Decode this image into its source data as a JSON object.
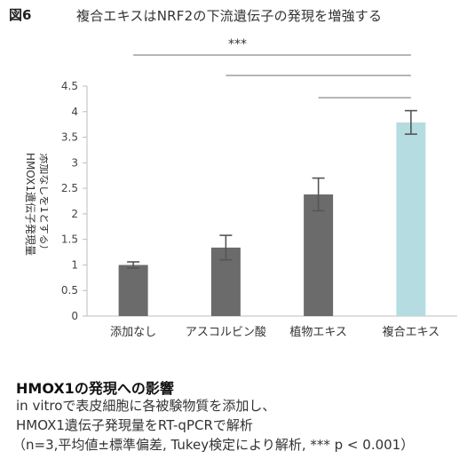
{
  "figure": {
    "label": "図6",
    "title": "複合エキスはNRF2の下流遺伝子の発現を増強する"
  },
  "chart_data": {
    "type": "bar",
    "categories": [
      "添加なし",
      "アスコルビン酸",
      "植物エキス",
      "複合エキス"
    ],
    "values": [
      1.0,
      1.34,
      2.38,
      3.79
    ],
    "errors": [
      0.06,
      0.24,
      0.32,
      0.23
    ],
    "bar_colors": [
      "#6b6b6b",
      "#6b6b6b",
      "#6b6b6b",
      "#b5dde1"
    ],
    "ylabel_line1": "HMOX1遺伝子発現量",
    "ylabel_line2": "添加なしを1とする）",
    "ylim": [
      0,
      4.5
    ],
    "yticks": [
      "0",
      "0.5",
      "1",
      "1.5",
      "2",
      "2.5",
      "3",
      "3.5",
      "4",
      "4.5"
    ],
    "significance": {
      "label": "***",
      "comparisons": [
        [
          "添加なし",
          "複合エキス"
        ],
        [
          "アスコルビン酸",
          "複合エキス"
        ],
        [
          "植物エキス",
          "複合エキス"
        ]
      ]
    },
    "grid": false,
    "legend": "none"
  },
  "caption": {
    "heading": "HMOX1の発現への影響",
    "line1": "in vitroで表皮細胞に各被験物質を添加し、",
    "line2": "HMOX1遺伝子発現量をRT-qPCRで解析",
    "line3": "（n=3,平均値±標準偏差, Tukey検定により解析,  *** p < 0.001）"
  }
}
